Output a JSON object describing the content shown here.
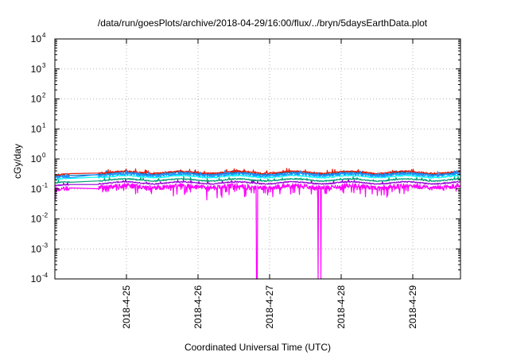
{
  "chart_data": {
    "type": "line",
    "title": "/data/run/goesPlots/archive/2018-04-29/16:00/flux/../bryn/5daysEarthData.plot",
    "xlabel": "Coordinated Universal Time (UTC)",
    "ylabel": "cGy/day",
    "y_scale": "log",
    "ylim": [
      0.0001,
      10000
    ],
    "xlim": [
      "2018-04-24 00:00",
      "2018-04-29 16:00"
    ],
    "grid": true,
    "legend": "none",
    "y_ticks": [
      {
        "base": "10",
        "exp": "-4",
        "value": 0.0001
      },
      {
        "base": "10",
        "exp": "-3",
        "value": 0.001
      },
      {
        "base": "10",
        "exp": "-2",
        "value": 0.01
      },
      {
        "base": "10",
        "exp": "-1",
        "value": 0.1
      },
      {
        "base": "10",
        "exp": "0",
        "value": 1
      },
      {
        "base": "10",
        "exp": "1",
        "value": 10
      },
      {
        "base": "10",
        "exp": "2",
        "value": 100
      },
      {
        "base": "10",
        "exp": "3",
        "value": 1000
      },
      {
        "base": "10",
        "exp": "4",
        "value": 10000
      }
    ],
    "x_ticks": [
      {
        "label": "2018-4-25",
        "value": "2018-04-25 00:00"
      },
      {
        "label": "2018-4-26",
        "value": "2018-04-26 00:00"
      },
      {
        "label": "2018-4-27",
        "value": "2018-04-27 00:00"
      },
      {
        "label": "2018-4-28",
        "value": "2018-04-28 00:00"
      },
      {
        "label": "2018-4-29",
        "value": "2018-04-29 00:00"
      }
    ],
    "series": [
      {
        "color": "#ff00ff",
        "base": 0.12,
        "noise": 0.35,
        "spikes": 0.55,
        "gaps": [
          [
            "2018-04-24 05:00",
            "2018-04-24 14:30"
          ]
        ],
        "dropouts": [
          [
            "2018-04-26 19:36",
            "2018-04-26 19:55"
          ],
          [
            "2018-04-27 16:10",
            "2018-04-27 16:19"
          ],
          [
            "2018-04-27 17:10",
            "2018-04-27 17:19"
          ]
        ]
      },
      {
        "color": "#9400d3",
        "base": 0.16,
        "noise": 0.08,
        "spikes": 0.0
      },
      {
        "color": "#009e73",
        "base": 0.2,
        "noise": 0.08,
        "spikes": 0.0
      },
      {
        "color": "#00ffff",
        "base": 0.26,
        "noise": 0.1,
        "spikes": 0.0
      },
      {
        "color": "#0072b2",
        "base": 0.33,
        "noise": 0.12,
        "spikes": 0.0
      },
      {
        "color": "#e51e10",
        "base": 0.36,
        "noise": 0.1,
        "spikes": 0.0
      },
      {
        "color": "#1e90ff",
        "base": 0.3,
        "noise": 0.2,
        "spikes": 0.0
      }
    ],
    "data_start": "2018-04-24 00:00",
    "data_gap": [
      "2018-04-24 05:00",
      "2018-04-24 14:30"
    ],
    "data_end": "2018-04-29 16:00"
  }
}
